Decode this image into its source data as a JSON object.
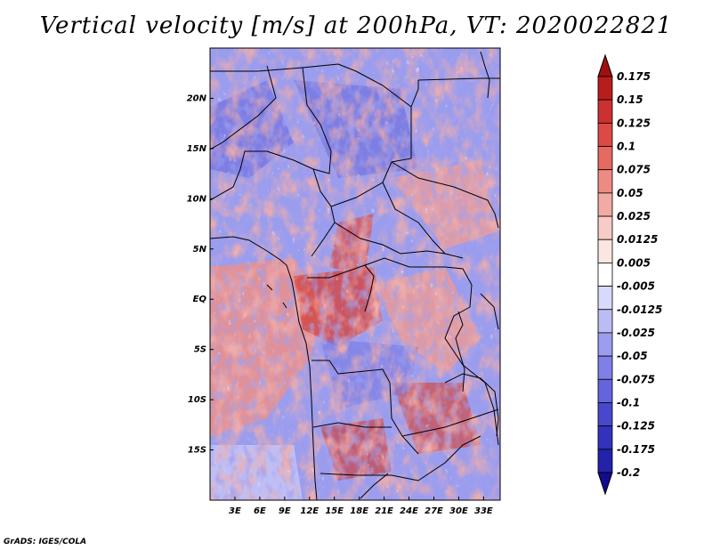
{
  "chart_data": {
    "type": "heatmap",
    "title": "Vertical velocity [m/s] at 200hPa, VT: 2020022821",
    "xlabel": "",
    "ylabel": "",
    "x_ticks": [
      "3E",
      "6E",
      "9E",
      "12E",
      "15E",
      "18E",
      "21E",
      "24E",
      "27E",
      "30E",
      "33E"
    ],
    "x_tick_values": [
      3,
      6,
      9,
      12,
      15,
      18,
      21,
      24,
      27,
      30,
      33
    ],
    "y_ticks": [
      "20N",
      "15N",
      "10N",
      "5N",
      "EQ",
      "5S",
      "10S",
      "15S"
    ],
    "y_tick_values": [
      20,
      15,
      10,
      5,
      0,
      -5,
      -10,
      -15
    ],
    "lon_range": [
      0,
      35
    ],
    "lat_range": [
      -20,
      25
    ],
    "colorbar_levels": [
      "0.175",
      "0.15",
      "0.125",
      "0.1",
      "0.075",
      "0.05",
      "0.025",
      "0.0125",
      "0.005",
      "-0.005",
      "-0.0125",
      "-0.025",
      "-0.05",
      "-0.075",
      "-0.1",
      "-0.125",
      "-0.175",
      "-0.2"
    ],
    "colorbar_colors": [
      "#a01010",
      "#b81d1d",
      "#cc3030",
      "#dc4a45",
      "#e46a62",
      "#ec8a84",
      "#f2aaa4",
      "#f7cbc6",
      "#fbe6e2",
      "#ffffff",
      "#d9d9fb",
      "#bcbcf5",
      "#9d9df0",
      "#7f7fe8",
      "#6464dc",
      "#4848cc",
      "#3232bc",
      "#2222aa",
      "#120c90"
    ],
    "legend_position": "right"
  },
  "credit": "GrADS: IGES/COLA"
}
